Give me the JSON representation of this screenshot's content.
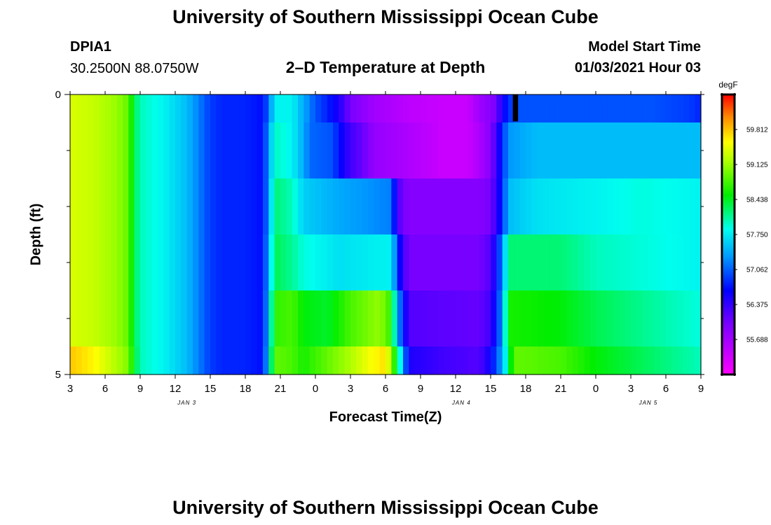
{
  "header": {
    "title": "University of Southern Mississippi Ocean Cube",
    "station_id": "DPIA1",
    "station_coords": "30.2500N 88.0750W",
    "chart_title": "2–D Temperature at Depth",
    "model_start_label": "Model Start Time",
    "model_start_value": "01/03/2021 Hour 03"
  },
  "footer": {
    "title": "University of Southern Mississippi Ocean Cube"
  },
  "chart_data": {
    "type": "heatmap",
    "title": "2–D Temperature at Depth",
    "xlabel": "Forecast Time(Z)",
    "ylabel": "Depth (ft)",
    "xlim": [
      3,
      57
    ],
    "ylim": [
      0,
      5
    ],
    "x_ticks": [
      3,
      6,
      9,
      12,
      15,
      18,
      21,
      24,
      27,
      30,
      33,
      36,
      39,
      42,
      45,
      48,
      51,
      54,
      57
    ],
    "x_tick_labels": [
      "3",
      "6",
      "9",
      "12",
      "15",
      "18",
      "21",
      "0",
      "3",
      "6",
      "9",
      "12",
      "15",
      "18",
      "21",
      "0",
      "3",
      "6",
      "9"
    ],
    "date_labels": [
      {
        "x": 13,
        "label": "JAN 3"
      },
      {
        "x": 36.5,
        "label": "JAN 4"
      },
      {
        "x": 52.5,
        "label": "JAN 5"
      }
    ],
    "y_ticks": [
      0,
      5
    ],
    "y_tick_labels": [
      "0",
      "5"
    ],
    "y_minor_ticks": [
      1,
      2,
      3,
      4
    ],
    "colorbar": {
      "unit": "degF",
      "min": 55.0,
      "max": 60.5,
      "tick_values": [
        59.812,
        59.125,
        58.438,
        57.75,
        57.062,
        56.375,
        55.688
      ],
      "tick_labels": [
        "59.812",
        "59.125",
        "58.438",
        "57.750",
        "57.062",
        "56.375",
        "55.688"
      ]
    },
    "depth_layers": [
      0,
      1,
      2,
      3,
      4,
      5
    ],
    "layer_profiles": [
      [
        [
          3,
          59.4
        ],
        [
          5,
          59.3
        ],
        [
          7,
          59.1
        ],
        [
          8,
          58.9
        ],
        [
          8.5,
          58.3
        ],
        [
          9,
          58.0
        ],
        [
          11,
          57.8
        ],
        [
          13,
          57.5
        ],
        [
          15,
          56.9
        ],
        [
          16,
          56.8
        ],
        [
          18,
          56.8
        ],
        [
          19.5,
          56.7
        ],
        [
          20,
          57.1
        ],
        [
          20.5,
          57.8
        ],
        [
          22,
          57.8
        ],
        [
          23,
          57.4
        ],
        [
          24,
          57.0
        ],
        [
          25,
          56.8
        ],
        [
          26,
          56.5
        ],
        [
          27,
          56.0
        ],
        [
          29,
          55.7
        ],
        [
          32,
          55.5
        ],
        [
          35,
          55.4
        ],
        [
          37,
          55.4
        ],
        [
          38,
          55.7
        ],
        [
          39.5,
          56.0
        ],
        [
          40,
          56.6
        ],
        [
          41,
          57.0
        ],
        [
          48,
          57.0
        ],
        [
          53,
          57.0
        ],
        [
          56,
          56.9
        ],
        [
          57,
          56.8
        ]
      ],
      [
        [
          3,
          59.4
        ],
        [
          5,
          59.3
        ],
        [
          7,
          59.1
        ],
        [
          8,
          58.9
        ],
        [
          8.5,
          58.3
        ],
        [
          9,
          58.0
        ],
        [
          11,
          57.8
        ],
        [
          13,
          57.5
        ],
        [
          15,
          56.9
        ],
        [
          16,
          56.8
        ],
        [
          18,
          56.8
        ],
        [
          19.5,
          56.7
        ],
        [
          20,
          57.3
        ],
        [
          20.5,
          58.0
        ],
        [
          22,
          57.8
        ],
        [
          23,
          57.4
        ],
        [
          23.5,
          57.1
        ],
        [
          25.5,
          57.0
        ],
        [
          26,
          56.7
        ],
        [
          27,
          56.3
        ],
        [
          28,
          56.1
        ],
        [
          29,
          55.8
        ],
        [
          32,
          55.6
        ],
        [
          35,
          55.4
        ],
        [
          37,
          55.4
        ],
        [
          38,
          55.6
        ],
        [
          39,
          55.9
        ],
        [
          40,
          56.8
        ],
        [
          40.5,
          57.3
        ],
        [
          43,
          57.5
        ],
        [
          48,
          57.5
        ],
        [
          57,
          57.5
        ]
      ],
      [
        [
          3,
          59.4
        ],
        [
          5,
          59.3
        ],
        [
          7,
          59.1
        ],
        [
          8,
          58.9
        ],
        [
          8.5,
          58.3
        ],
        [
          9,
          58.0
        ],
        [
          11,
          57.8
        ],
        [
          13,
          57.5
        ],
        [
          15,
          56.9
        ],
        [
          16,
          56.8
        ],
        [
          18,
          56.8
        ],
        [
          19.5,
          56.7
        ],
        [
          20,
          57.3
        ],
        [
          20.5,
          58.2
        ],
        [
          22,
          58.0
        ],
        [
          23,
          57.6
        ],
        [
          26,
          57.4
        ],
        [
          30.5,
          57.2
        ],
        [
          31,
          56.3
        ],
        [
          31.5,
          56.0
        ],
        [
          32,
          55.9
        ],
        [
          38,
          55.9
        ],
        [
          39,
          56.0
        ],
        [
          40,
          56.8
        ],
        [
          40.5,
          57.5
        ],
        [
          43,
          57.7
        ],
        [
          48,
          57.8
        ],
        [
          52,
          57.9
        ],
        [
          57,
          57.8
        ]
      ],
      [
        [
          3,
          59.4
        ],
        [
          5,
          59.3
        ],
        [
          7,
          59.1
        ],
        [
          8,
          58.9
        ],
        [
          8.5,
          58.3
        ],
        [
          9,
          58.0
        ],
        [
          11,
          57.8
        ],
        [
          13,
          57.5
        ],
        [
          15,
          56.9
        ],
        [
          16,
          56.8
        ],
        [
          18,
          56.8
        ],
        [
          19.5,
          56.7
        ],
        [
          20,
          57.4
        ],
        [
          20.5,
          58.3
        ],
        [
          22,
          58.1
        ],
        [
          23,
          57.9
        ],
        [
          26,
          57.7
        ],
        [
          30.5,
          57.8
        ],
        [
          31,
          56.9
        ],
        [
          31.5,
          56.3
        ],
        [
          32,
          56.0
        ],
        [
          38,
          56.0
        ],
        [
          39,
          56.2
        ],
        [
          40,
          57.2
        ],
        [
          40.5,
          58.2
        ],
        [
          45,
          58.2
        ],
        [
          48,
          58.0
        ],
        [
          57,
          57.8
        ]
      ],
      [
        [
          3,
          59.4
        ],
        [
          5,
          59.3
        ],
        [
          7,
          59.1
        ],
        [
          8,
          58.9
        ],
        [
          8.5,
          58.3
        ],
        [
          9,
          58.0
        ],
        [
          11,
          57.8
        ],
        [
          13,
          57.5
        ],
        [
          15,
          56.9
        ],
        [
          16,
          56.8
        ],
        [
          18,
          56.8
        ],
        [
          19.5,
          56.7
        ],
        [
          20,
          57.5
        ],
        [
          20.5,
          58.7
        ],
        [
          22,
          58.8
        ],
        [
          23,
          58.5
        ],
        [
          25,
          58.4
        ],
        [
          27,
          58.8
        ],
        [
          29.5,
          59.1
        ],
        [
          30.5,
          58.7
        ],
        [
          31,
          57.4
        ],
        [
          31.5,
          56.8
        ],
        [
          32,
          56.2
        ],
        [
          38,
          56.1
        ],
        [
          39,
          56.3
        ],
        [
          40,
          57.3
        ],
        [
          40.5,
          58.6
        ],
        [
          45,
          58.5
        ],
        [
          48,
          58.3
        ],
        [
          57,
          57.9
        ]
      ],
      [
        [
          3,
          59.8
        ],
        [
          5,
          59.6
        ],
        [
          7,
          59.2
        ],
        [
          8,
          59.0
        ],
        [
          8.5,
          58.4
        ],
        [
          9,
          58.0
        ],
        [
          11,
          57.8
        ],
        [
          13,
          57.5
        ],
        [
          15,
          56.9
        ],
        [
          16,
          56.8
        ],
        [
          18,
          56.8
        ],
        [
          19.5,
          56.7
        ],
        [
          20,
          57.6
        ],
        [
          20.5,
          58.9
        ],
        [
          22,
          58.8
        ],
        [
          23,
          58.6
        ],
        [
          25,
          58.9
        ],
        [
          27,
          59.2
        ],
        [
          28.5,
          59.5
        ],
        [
          30,
          59.7
        ],
        [
          30.5,
          59.1
        ],
        [
          31,
          58.3
        ],
        [
          31.5,
          57.4
        ],
        [
          32,
          56.5
        ],
        [
          35,
          56.3
        ],
        [
          38,
          56.2
        ],
        [
          39,
          56.6
        ],
        [
          40,
          57.4
        ],
        [
          41,
          58.9
        ],
        [
          45,
          58.8
        ],
        [
          48,
          58.5
        ],
        [
          57,
          58.0
        ]
      ]
    ],
    "annotations": [
      "black data gap marker near hour 41, depth 0–1 ft"
    ]
  }
}
